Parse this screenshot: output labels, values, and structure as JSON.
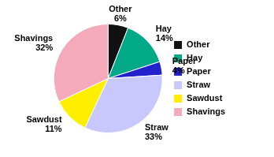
{
  "chart_data": {
    "type": "pie",
    "categories": [
      "Other",
      "Hay",
      "Paper",
      "Straw",
      "Sawdust",
      "Shavings"
    ],
    "values": [
      6,
      14,
      4,
      33,
      11,
      32
    ],
    "value_labels": [
      "6%",
      "14%",
      "4%",
      "33%",
      "11%",
      "32%"
    ],
    "colors": [
      "#111111",
      "#00AA88",
      "#2222CC",
      "#C8C8FF",
      "#FFEE00",
      "#F4AABB"
    ],
    "data_labels": true,
    "legend": "right"
  }
}
